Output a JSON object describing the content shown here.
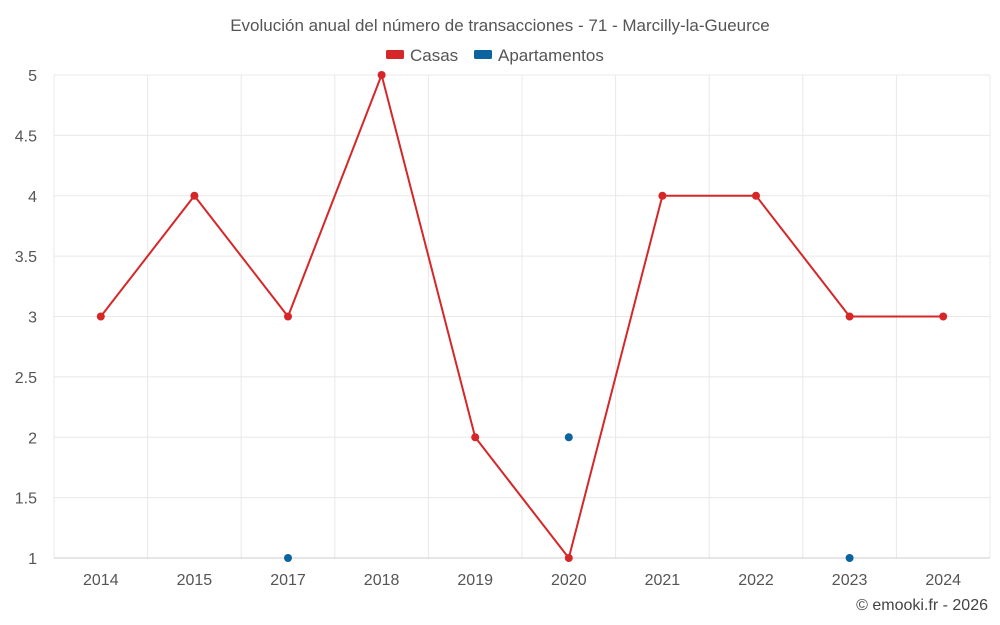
{
  "chart_data": {
    "type": "line",
    "title": "Evolución anual del número de transacciones - 71 - Marcilly-la-Gueurce",
    "categories": [
      "2014",
      "2015",
      "2017",
      "2018",
      "2019",
      "2020",
      "2021",
      "2022",
      "2023",
      "2024"
    ],
    "y_ticks": [
      "1",
      "1.5",
      "2",
      "2.5",
      "3",
      "3.5",
      "4",
      "4.5",
      "5"
    ],
    "ylim": [
      1,
      5
    ],
    "grid": true,
    "legend_position": "top-center",
    "series": [
      {
        "name": "Casas",
        "color": "#d62728",
        "line": true,
        "values": [
          3,
          4,
          3,
          5,
          2,
          1,
          4,
          4,
          3,
          3
        ]
      },
      {
        "name": "Apartamentos",
        "color": "#0b64a0",
        "line": false,
        "values": [
          null,
          null,
          1,
          null,
          null,
          2,
          null,
          null,
          1,
          null
        ]
      }
    ]
  },
  "credit": "© emooki.fr - 2026"
}
